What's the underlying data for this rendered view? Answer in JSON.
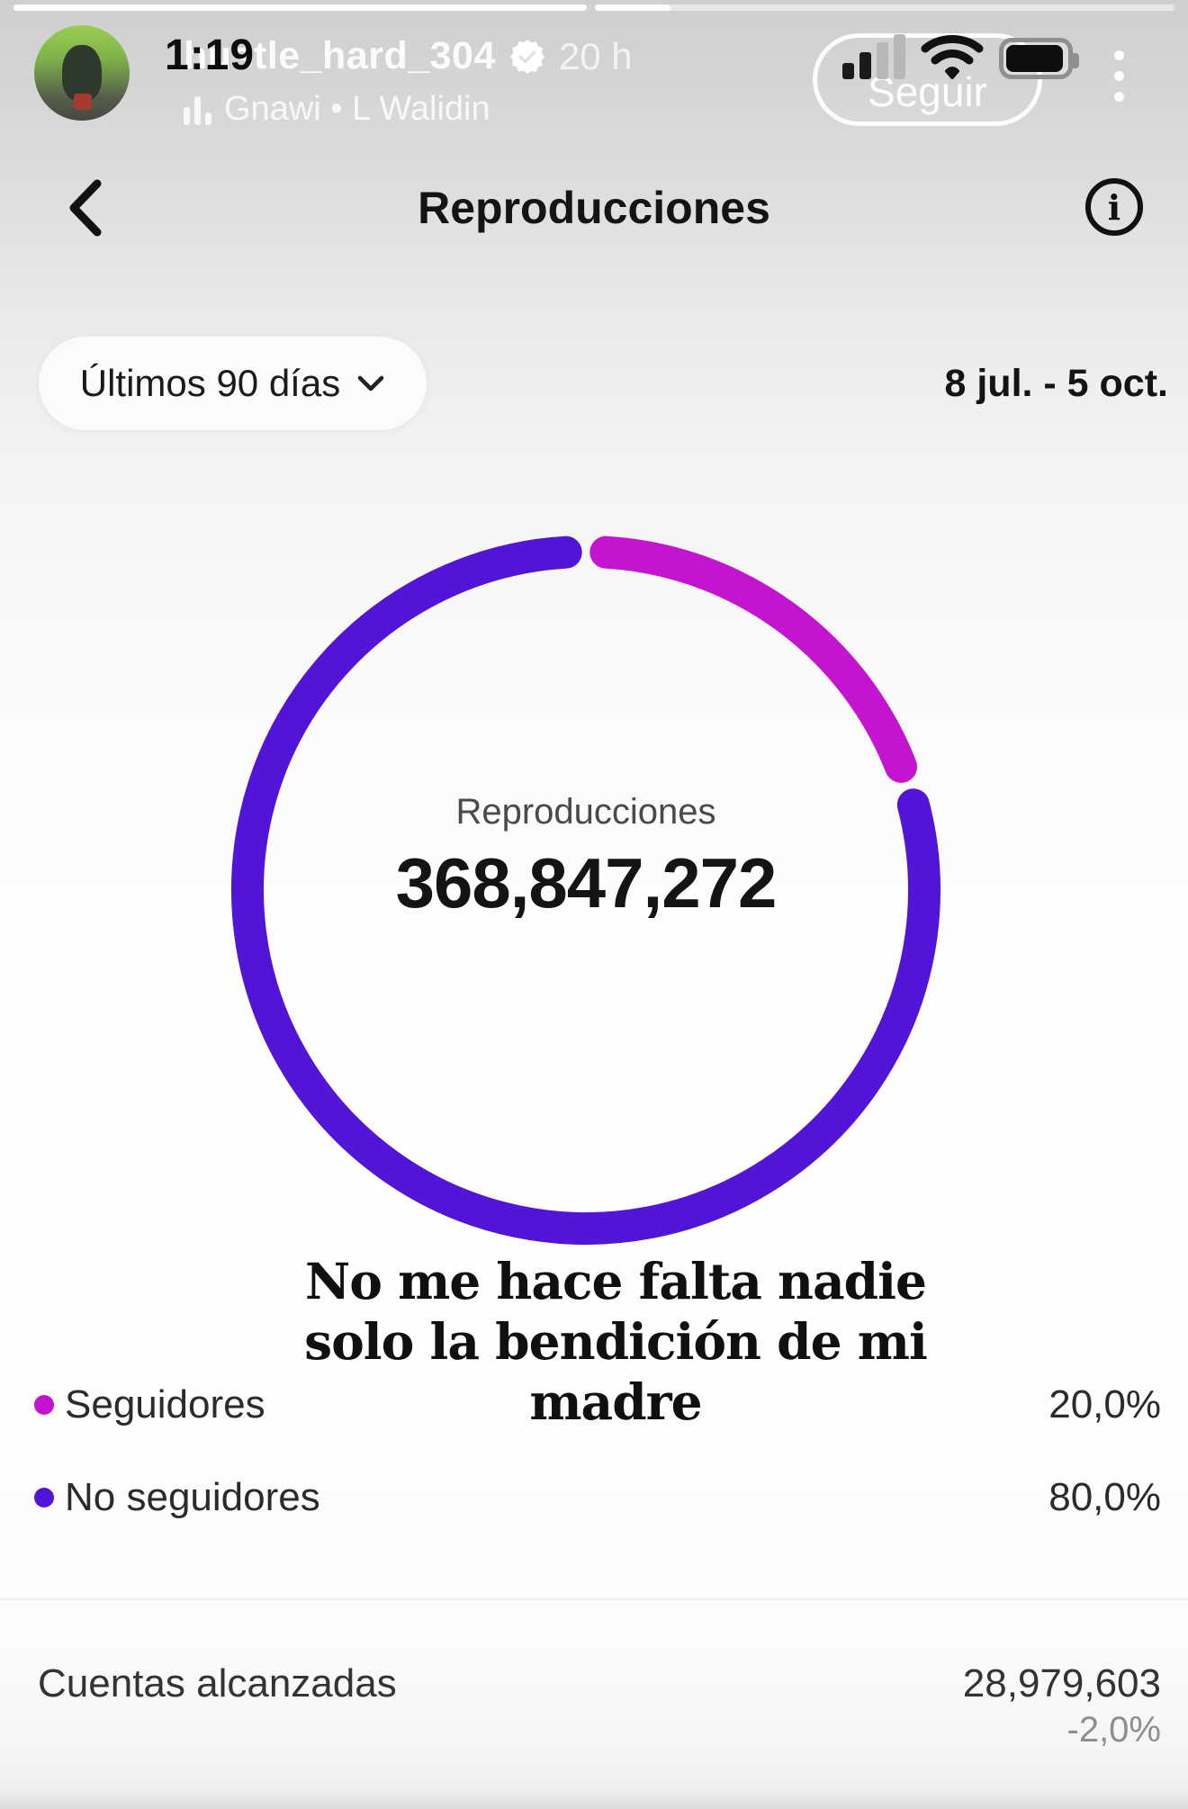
{
  "status_bar": {
    "clock": "1:19",
    "signal_bars_active": 2,
    "signal_bars_total": 4,
    "battery_percent_visual": 88
  },
  "story": {
    "username": "hustle_hard_304",
    "time_ago": "20 h",
    "music_attribution": "Gnawi • L Walidin",
    "follow_label": "Seguir",
    "progress_segments": 2
  },
  "nav": {
    "title": "Reproducciones"
  },
  "filter": {
    "period_label": "Últimos 90 días",
    "date_range": "8 jul. - 5 oct."
  },
  "chart_data": {
    "type": "pie",
    "subtype": "donut",
    "title": "Reproducciones",
    "center_label": "Reproducciones",
    "center_value": "368,847,272",
    "start_angle_deg": 0,
    "direction": "clockwise",
    "slices": [
      {
        "label": "Seguidores",
        "percent": 20.0,
        "display": "20,0%",
        "color": "#C414CF"
      },
      {
        "label": "No seguidores",
        "percent": 80.0,
        "display": "80,0%",
        "color": "#5214D6"
      }
    ],
    "legend_position": "bottom-left"
  },
  "donut_center": {
    "label": "Reproducciones",
    "value": "368,847,272"
  },
  "sticker": {
    "line1": "No me hace falta nadie",
    "line2": "solo la bendición de mi",
    "line3": "madre"
  },
  "legend": [
    {
      "label": "Seguidores",
      "value": "20,0%",
      "color": "#C414CF"
    },
    {
      "label": "No seguidores",
      "value": "80,0%",
      "color": "#5214D6"
    }
  ],
  "summary": {
    "label": "Cuentas alcanzadas",
    "value": "28,979,603",
    "delta": "-2,0%"
  }
}
